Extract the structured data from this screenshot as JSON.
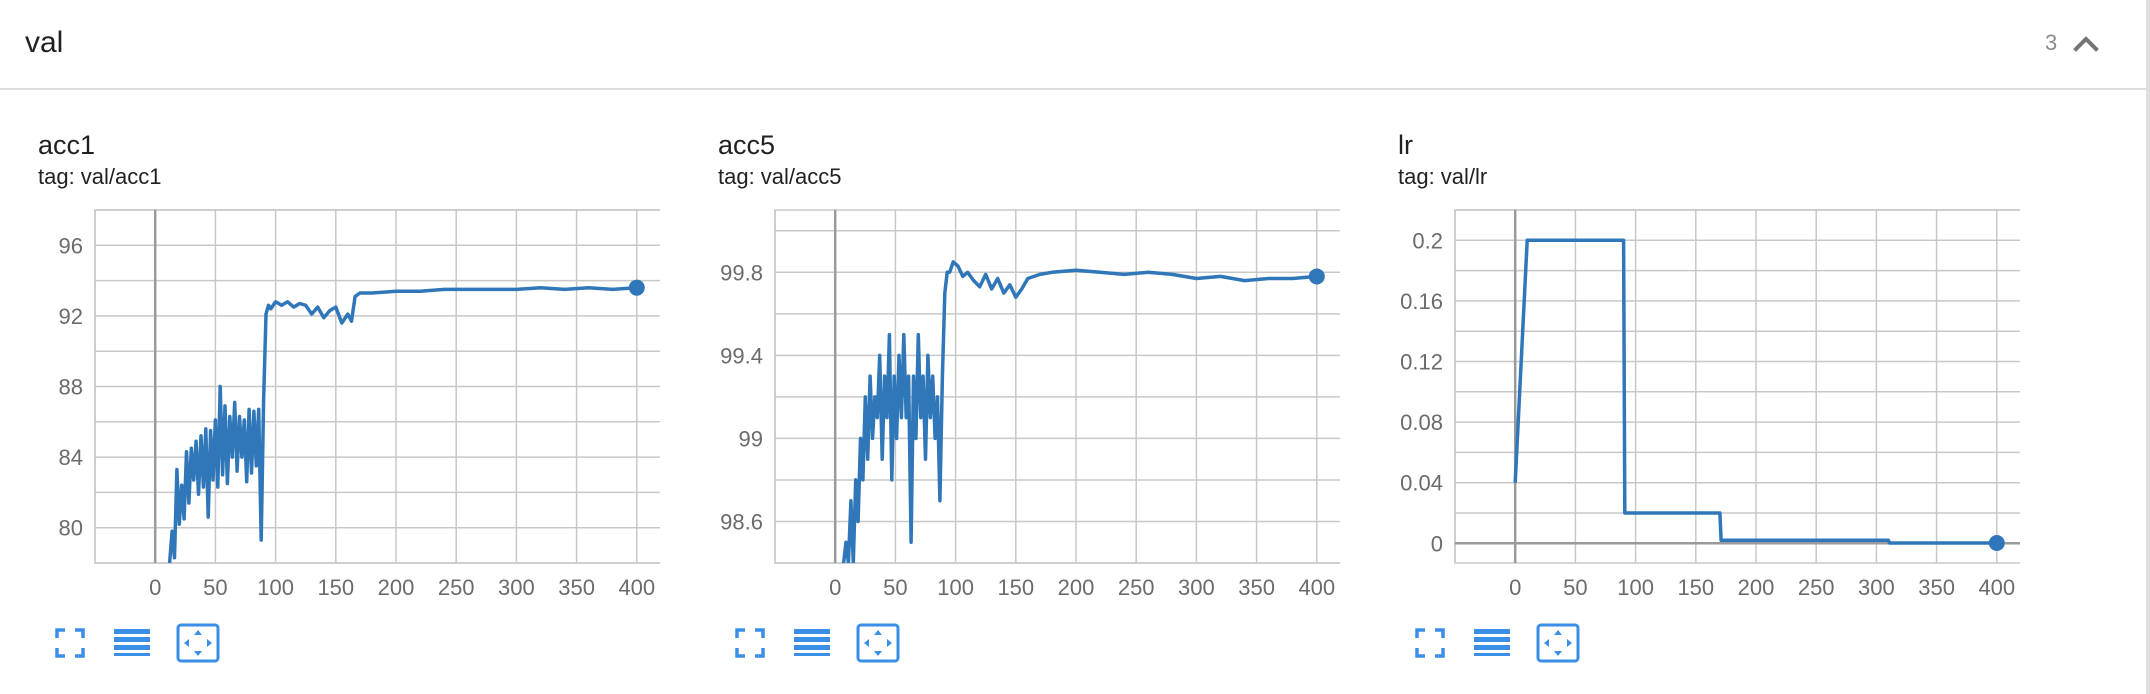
{
  "section": {
    "title": "val",
    "count": "3",
    "toggle_icon": "chevron-up-icon"
  },
  "colors": {
    "line": "#2f77b8",
    "grid": "#c8c8c8",
    "zero_axis": "#9a9a9a",
    "tick_text": "#6b6b6b",
    "toolbar_icon": "#3a8ee6"
  },
  "toolbar": {
    "icons": [
      "fullscreen-icon",
      "toggle-log-scale-icon",
      "fit-domain-icon"
    ]
  },
  "cards": [
    {
      "title": "acc1",
      "tag": "tag: val/acc1",
      "chart_data": {
        "type": "line",
        "title": "acc1",
        "xlabel": "",
        "ylabel": "",
        "xlim": [
          -50,
          450
        ],
        "ylim": [
          78,
          98
        ],
        "x_ticks": [
          0,
          50,
          100,
          150,
          200,
          250,
          300,
          350,
          400
        ],
        "y_ticks": [
          80,
          84,
          88,
          92,
          96
        ],
        "grid": true,
        "series": [
          {
            "x": [
              12,
              14,
              16,
              18,
              20,
              22,
              24,
              26,
              28,
              30,
              32,
              34,
              36,
              38,
              40,
              42,
              44,
              46,
              48,
              50,
              52,
              54,
              56,
              58,
              60,
              62,
              64,
              66,
              68,
              70,
              72,
              74,
              76,
              78,
              80,
              82,
              84,
              86,
              88,
              90,
              92,
              94,
              96,
              100,
              105,
              110,
              115,
              120,
              125,
              130,
              135,
              140,
              145,
              150,
              155,
              160,
              163,
              166,
              170,
              180,
              200,
              220,
              240,
              260,
              280,
              300,
              320,
              340,
              360,
              380,
              400
            ],
            "y": [
              78,
              79.8,
              78.3,
              83.3,
              80.2,
              82.4,
              80.5,
              84.3,
              81.4,
              84.5,
              82.7,
              84.9,
              81.9,
              85.2,
              82.3,
              85.6,
              80.6,
              85.5,
              82.7,
              86.1,
              82.3,
              88.0,
              83.0,
              86.9,
              82.5,
              86.3,
              84.0,
              87.1,
              83.2,
              86.3,
              84.0,
              86.1,
              82.6,
              86.7,
              83.1,
              86.6,
              83.5,
              86.7,
              79.3,
              87.2,
              92.1,
              92.6,
              92.4,
              92.8,
              92.6,
              92.8,
              92.5,
              92.7,
              92.6,
              92.1,
              92.5,
              91.9,
              92.3,
              92.5,
              91.6,
              92.1,
              91.7,
              93.1,
              93.3,
              93.3,
              93.4,
              93.4,
              93.5,
              93.5,
              93.5,
              93.5,
              93.6,
              93.5,
              93.6,
              93.5,
              93.6
            ]
          }
        ]
      }
    },
    {
      "title": "acc5",
      "tag": "tag: val/acc5",
      "chart_data": {
        "type": "line",
        "title": "acc5",
        "xlabel": "",
        "ylabel": "",
        "xlim": [
          -50,
          450
        ],
        "ylim": [
          98.4,
          100.1
        ],
        "x_ticks": [
          0,
          50,
          100,
          150,
          200,
          250,
          300,
          350,
          400
        ],
        "y_ticks": [
          98.6,
          99,
          99.4,
          99.8
        ],
        "grid": true,
        "series": [
          {
            "x": [
              7,
              9,
              11,
              13,
              15,
              17,
              19,
              21,
              23,
              25,
              27,
              29,
              31,
              33,
              35,
              37,
              39,
              41,
              43,
              45,
              47,
              49,
              51,
              53,
              55,
              57,
              59,
              61,
              63,
              65,
              67,
              69,
              71,
              73,
              75,
              77,
              79,
              81,
              83,
              85,
              87,
              89,
              91,
              93,
              95,
              98,
              102,
              106,
              110,
              115,
              120,
              125,
              130,
              135,
              140,
              145,
              150,
              155,
              160,
              170,
              180,
              200,
              220,
              240,
              260,
              280,
              300,
              320,
              340,
              360,
              380,
              400
            ],
            "y": [
              98.4,
              98.5,
              98.4,
              98.7,
              98.4,
              98.8,
              98.6,
              99.0,
              98.8,
              99.2,
              98.9,
              99.3,
              99.0,
              99.2,
              99.1,
              99.4,
              98.9,
              99.3,
              99.1,
              99.5,
              98.8,
              99.3,
              99.0,
              99.4,
              99.1,
              99.5,
              99.1,
              99.3,
              98.5,
              99.3,
              99.0,
              99.5,
              99.1,
              99.3,
              98.9,
              99.4,
              99.1,
              99.3,
              99.0,
              99.2,
              98.7,
              99.3,
              99.7,
              99.8,
              99.8,
              99.85,
              99.83,
              99.78,
              99.8,
              99.76,
              99.73,
              99.79,
              99.72,
              99.77,
              99.7,
              99.74,
              99.68,
              99.72,
              99.77,
              99.79,
              99.8,
              99.81,
              99.8,
              99.79,
              99.8,
              99.79,
              99.77,
              99.78,
              99.76,
              99.77,
              99.77,
              99.78
            ]
          }
        ]
      }
    },
    {
      "title": "lr",
      "tag": "tag: val/lr",
      "chart_data": {
        "type": "line",
        "title": "lr",
        "xlabel": "",
        "ylabel": "",
        "xlim": [
          -50,
          450
        ],
        "ylim": [
          -0.013,
          0.22
        ],
        "x_ticks": [
          0,
          50,
          100,
          150,
          200,
          250,
          300,
          350,
          400
        ],
        "y_ticks": [
          0,
          0.04,
          0.08,
          0.12,
          0.16,
          0.2
        ],
        "grid": true,
        "series": [
          {
            "x": [
              0,
              10,
              90,
              91,
              170,
              171,
              310,
              311,
              400
            ],
            "y": [
              0.04,
              0.2,
              0.2,
              0.02,
              0.02,
              0.002,
              0.002,
              0.0002,
              0.0002
            ]
          }
        ]
      }
    }
  ]
}
